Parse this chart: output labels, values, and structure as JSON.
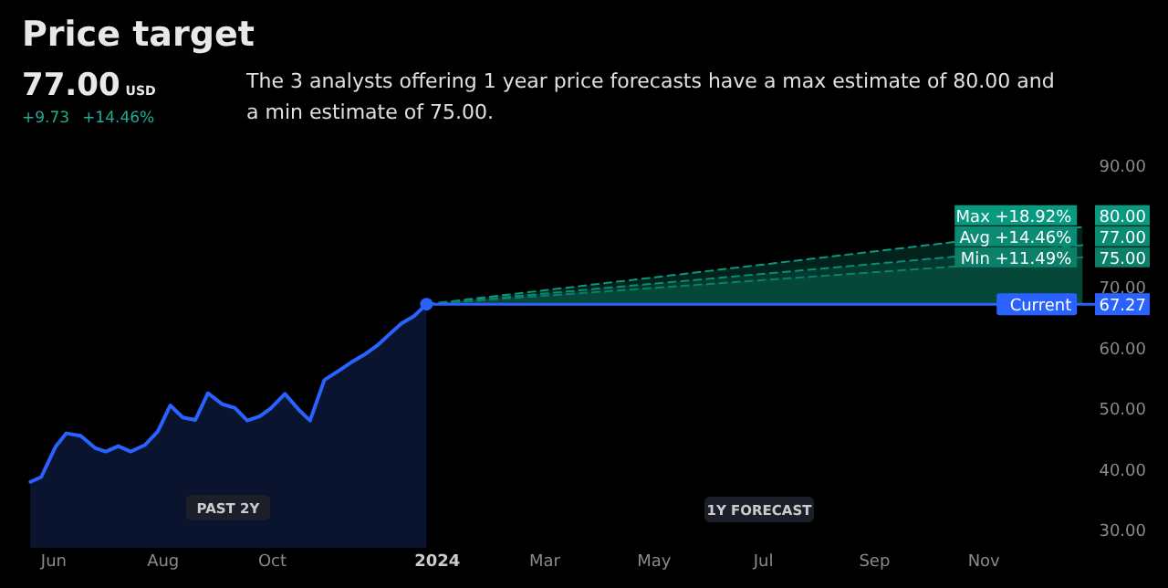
{
  "chart_data": {
    "type": "area",
    "title": "Price target",
    "subtitle": "77.00",
    "annotations": [
      "USD",
      "+9.73",
      "+14.46%",
      "The 3 analysts offering 1 year price forecasts have a max estimate of 80.00 and a min estimate of 75.00.",
      "PAST 2Y",
      "1Y FORECAST",
      {
        "text": "+18.92%",
        "x": "2024-12-26",
        "y": 80
      },
      {
        "text": "+14.46%",
        "x": "2024-12-26",
        "y": 77
      },
      {
        "text": "+11.49%",
        "x": "2024-12-26",
        "y": 75
      },
      {
        "text": "67.27",
        "y": 67.27
      }
    ],
    "xlim": [
      "2023-05-02",
      "2025-01-02"
    ],
    "xticks": [
      {
        "value": "2023-06-01",
        "label": "Jun"
      },
      {
        "value": "2023-08-01",
        "label": "Aug"
      },
      {
        "value": "2023-10-01",
        "label": "Oct"
      },
      {
        "value": "2024-01-01",
        "label": "2024"
      },
      {
        "value": "2024-03-01",
        "label": "Mar"
      },
      {
        "value": "2024-05-01",
        "label": "May"
      },
      {
        "value": "2024-07-01",
        "label": "Jul"
      },
      {
        "value": "2024-09-01",
        "label": "Sep"
      },
      {
        "value": "2024-11-01",
        "label": "Nov"
      }
    ],
    "ylim": [
      30,
      90
    ],
    "yticks": [
      {
        "value": 30,
        "label": "30.00"
      },
      {
        "value": 40,
        "label": "40.00"
      },
      {
        "value": 50,
        "label": "50.00"
      },
      {
        "value": 60,
        "label": "60.00"
      },
      {
        "value": 70,
        "label": "70.00"
      },
      {
        "value": 90,
        "label": "90.00"
      }
    ],
    "grid": false,
    "series": [
      {
        "color": "#2962ff",
        "x": [
          "2023-05-19",
          "2023-05-25",
          "2023-06-02",
          "2023-06-08",
          "2023-06-16",
          "2023-06-24",
          "2023-06-30",
          "2023-07-07",
          "2023-07-14",
          "2023-07-22",
          "2023-07-29",
          "2023-08-05",
          "2023-08-12",
          "2023-08-19",
          "2023-08-26",
          "2023-09-03",
          "2023-09-10",
          "2023-09-17",
          "2023-09-24",
          "2023-09-30",
          "2023-10-08",
          "2023-10-16",
          "2023-10-22",
          "2023-10-30",
          "2023-11-07",
          "2023-11-14",
          "2023-11-21",
          "2023-11-29",
          "2023-12-06",
          "2023-12-12",
          "2023-12-19",
          "2023-12-26"
        ],
        "values": [
          38.0,
          38.8,
          43.8,
          46.0,
          45.6,
          43.6,
          43.0,
          43.9,
          43.0,
          44.1,
          46.3,
          50.6,
          48.6,
          48.2,
          52.6,
          50.8,
          50.2,
          48.1,
          48.8,
          50.1,
          52.5,
          49.8,
          48.1,
          54.8,
          56.3,
          57.7,
          58.9,
          60.6,
          62.5,
          64.1,
          65.3,
          67.27
        ]
      },
      {
        "name": "Max",
        "color": "#089981",
        "line_style": "dashed",
        "x": [
          "2023-12-26",
          "2024-12-26"
        ],
        "values": [
          67.27,
          80
        ],
        "value_labels": [
          null,
          "80.00"
        ]
      },
      {
        "name": "Avg",
        "color": "#0a8c74",
        "line_style": "dashed",
        "x": [
          "2023-12-26",
          "2024-12-26"
        ],
        "values": [
          67.27,
          77
        ],
        "value_labels": [
          null,
          "77.00"
        ]
      },
      {
        "name": "Min",
        "color": "#0c7f69",
        "line_style": "dashed",
        "x": [
          "2023-12-26",
          "2024-12-26"
        ],
        "values": [
          67.27,
          75
        ],
        "value_labels": [
          null,
          "75.00"
        ]
      }
    ],
    "ref_lines": [
      {
        "axis": "y",
        "value": 67.27,
        "label": "Current",
        "color": "#2962ff"
      }
    ]
  }
}
